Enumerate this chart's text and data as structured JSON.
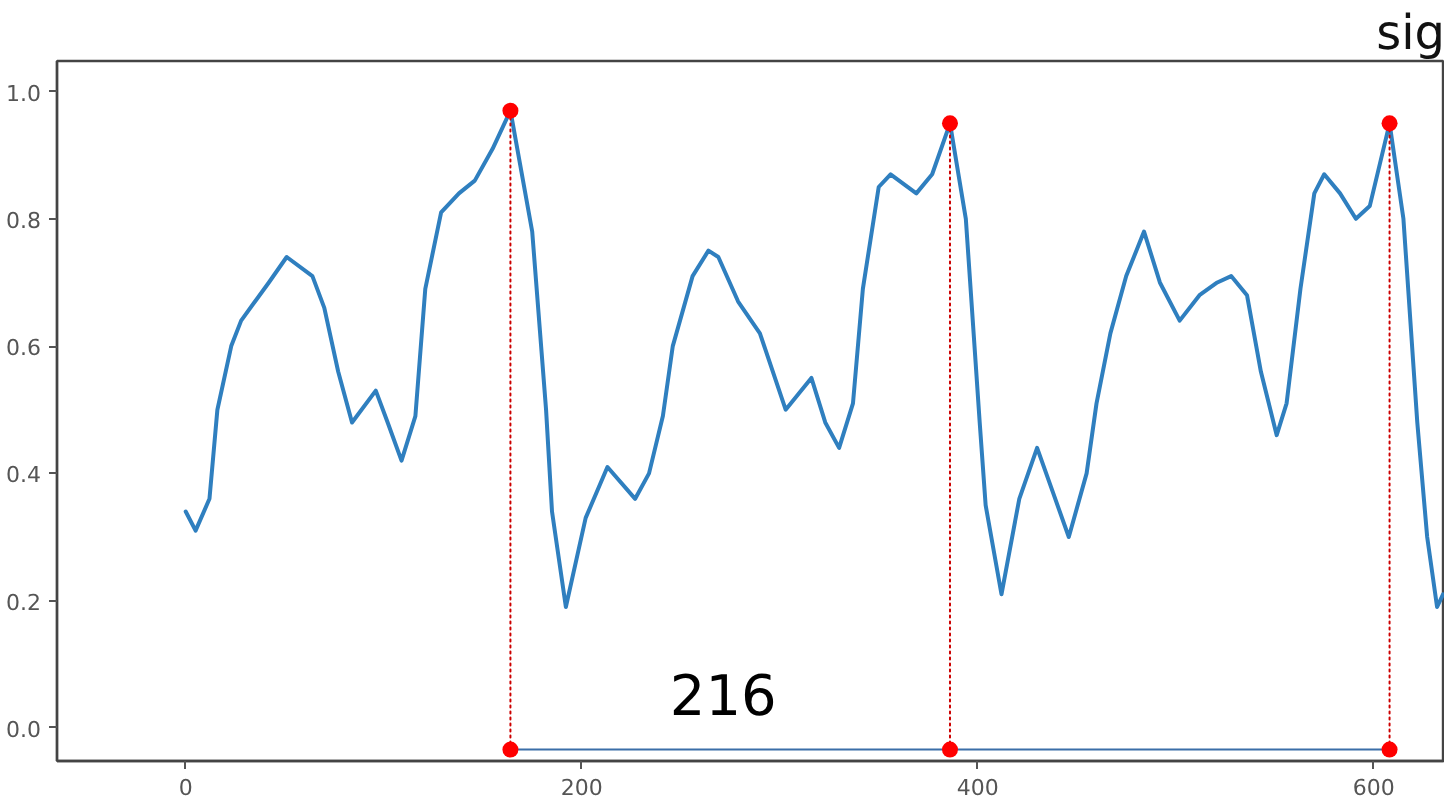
{
  "chart_data": {
    "type": "line",
    "title": "sig",
    "xlim": [
      -65,
      636
    ],
    "ylim": [
      -0.052,
      1.048
    ],
    "xticks": [
      0,
      200,
      400,
      600
    ],
    "yticks": [
      {
        "value": 0,
        "label": "0.0"
      },
      {
        "value": 0.2,
        "label": "0.2"
      },
      {
        "value": 0.4,
        "label": "0.4"
      },
      {
        "value": 0.6,
        "label": "0.6"
      },
      {
        "value": 0.8,
        "label": "0.8"
      },
      {
        "value": 1,
        "label": "1.0"
      }
    ],
    "grid": false,
    "annotations": [
      "216"
    ],
    "series": [
      {
        "color": "#2f7fbf",
        "x": [
          0,
          5,
          12,
          16,
          23,
          28,
          35,
          42,
          51,
          64,
          70,
          77,
          84,
          96,
          102,
          109,
          116,
          121,
          129,
          138,
          146,
          155,
          164,
          175,
          182,
          185,
          192,
          202,
          213,
          227,
          234,
          241,
          246,
          256,
          264,
          269,
          279,
          290,
          303,
          316,
          323,
          330,
          337,
          342,
          350,
          356,
          369,
          377,
          386,
          394,
          401,
          404,
          412,
          421,
          430,
          438,
          446,
          455,
          460,
          467,
          475,
          484,
          492,
          502,
          512,
          521,
          528,
          536,
          543,
          551,
          556,
          563,
          570,
          575,
          583,
          591,
          598,
          608,
          615,
          622,
          627,
          632,
          635
        ],
        "values": [
          0.34,
          0.31,
          0.36,
          0.5,
          0.6,
          0.64,
          0.67,
          0.7,
          0.74,
          0.71,
          0.66,
          0.56,
          0.48,
          0.53,
          0.48,
          0.42,
          0.49,
          0.69,
          0.81,
          0.84,
          0.86,
          0.91,
          0.97,
          0.78,
          0.5,
          0.34,
          0.19,
          0.33,
          0.41,
          0.36,
          0.4,
          0.49,
          0.6,
          0.71,
          0.75,
          0.74,
          0.67,
          0.62,
          0.5,
          0.55,
          0.48,
          0.44,
          0.51,
          0.69,
          0.85,
          0.87,
          0.84,
          0.87,
          0.95,
          0.8,
          0.48,
          0.35,
          0.21,
          0.36,
          0.44,
          0.37,
          0.3,
          0.4,
          0.51,
          0.62,
          0.71,
          0.78,
          0.7,
          0.64,
          0.68,
          0.7,
          0.71,
          0.68,
          0.56,
          0.46,
          0.51,
          0.69,
          0.84,
          0.87,
          0.84,
          0.8,
          0.82,
          0.95,
          0.8,
          0.48,
          0.3,
          0.19,
          0.21
        ]
      },
      {
        "type": "line",
        "color": "#cc0000",
        "line_style": "dotted",
        "x": [
          164,
          164
        ],
        "values": [
          -0.034,
          0.97
        ]
      },
      {
        "type": "line",
        "color": "#cc0000",
        "line_style": "dotted",
        "x": [
          386,
          386
        ],
        "values": [
          -0.034,
          0.95
        ]
      },
      {
        "type": "line",
        "color": "#cc0000",
        "line_style": "dotted",
        "x": [
          608,
          608
        ],
        "values": [
          -0.034,
          0.95
        ]
      },
      {
        "type": "line",
        "color": "#3b6ea8",
        "x": [
          164,
          608
        ],
        "values": [
          -0.034,
          -0.034
        ]
      },
      {
        "type": "scatter",
        "color": "#ff0000",
        "marker": "circle",
        "x": [
          164,
          386,
          608
        ],
        "values": [
          0.97,
          0.95,
          0.95
        ]
      },
      {
        "type": "scatter",
        "color": "#ff0000",
        "marker": "circle",
        "x": [
          164,
          386,
          608
        ],
        "values": [
          -0.034,
          -0.034,
          -0.034
        ]
      }
    ]
  }
}
